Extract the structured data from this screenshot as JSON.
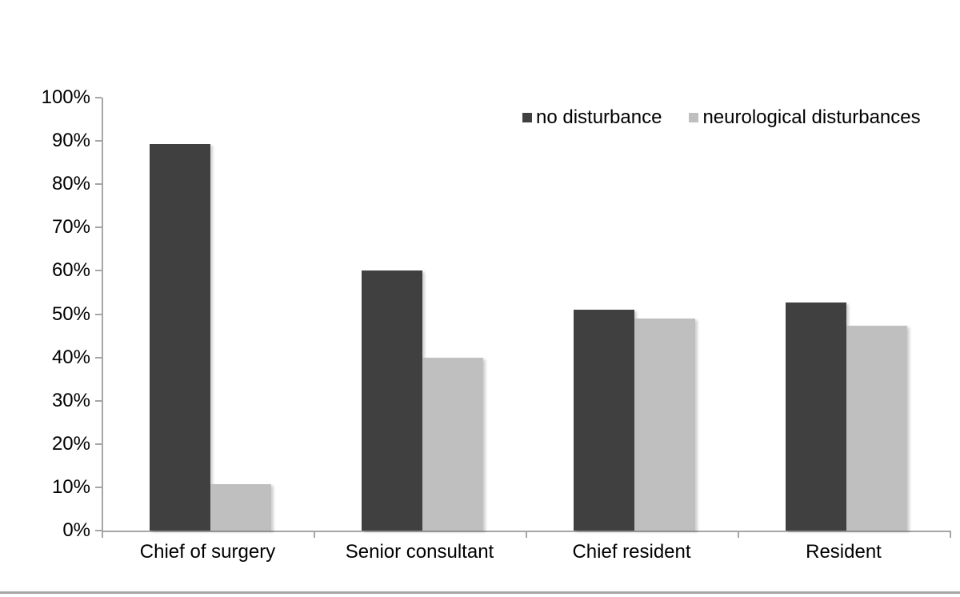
{
  "page": {
    "background_color": "#ffffff",
    "divider_color": "#a6a6a6"
  },
  "chart_data": {
    "type": "bar",
    "title": "",
    "xlabel": "",
    "ylabel": "",
    "categories": [
      "Chief of surgery",
      "Senior consultant",
      "Chief resident",
      "Resident"
    ],
    "series": [
      {
        "name": "no disturbance",
        "color": "#404040",
        "values": [
          89.3,
          60,
          51,
          52.7
        ]
      },
      {
        "name": "neurological disturbances",
        "color": "#bfbfbf",
        "values": [
          10.7,
          40,
          49,
          47.3
        ]
      }
    ],
    "ylim": [
      0,
      100
    ],
    "ytick_step": 10,
    "ytick_labels": [
      "0%",
      "10%",
      "20%",
      "30%",
      "40%",
      "50%",
      "60%",
      "70%",
      "80%",
      "90%",
      "100%"
    ],
    "grid": false,
    "legend_position": "top-right",
    "axis_color": "#a6a6a6",
    "text_color": "#000000"
  }
}
